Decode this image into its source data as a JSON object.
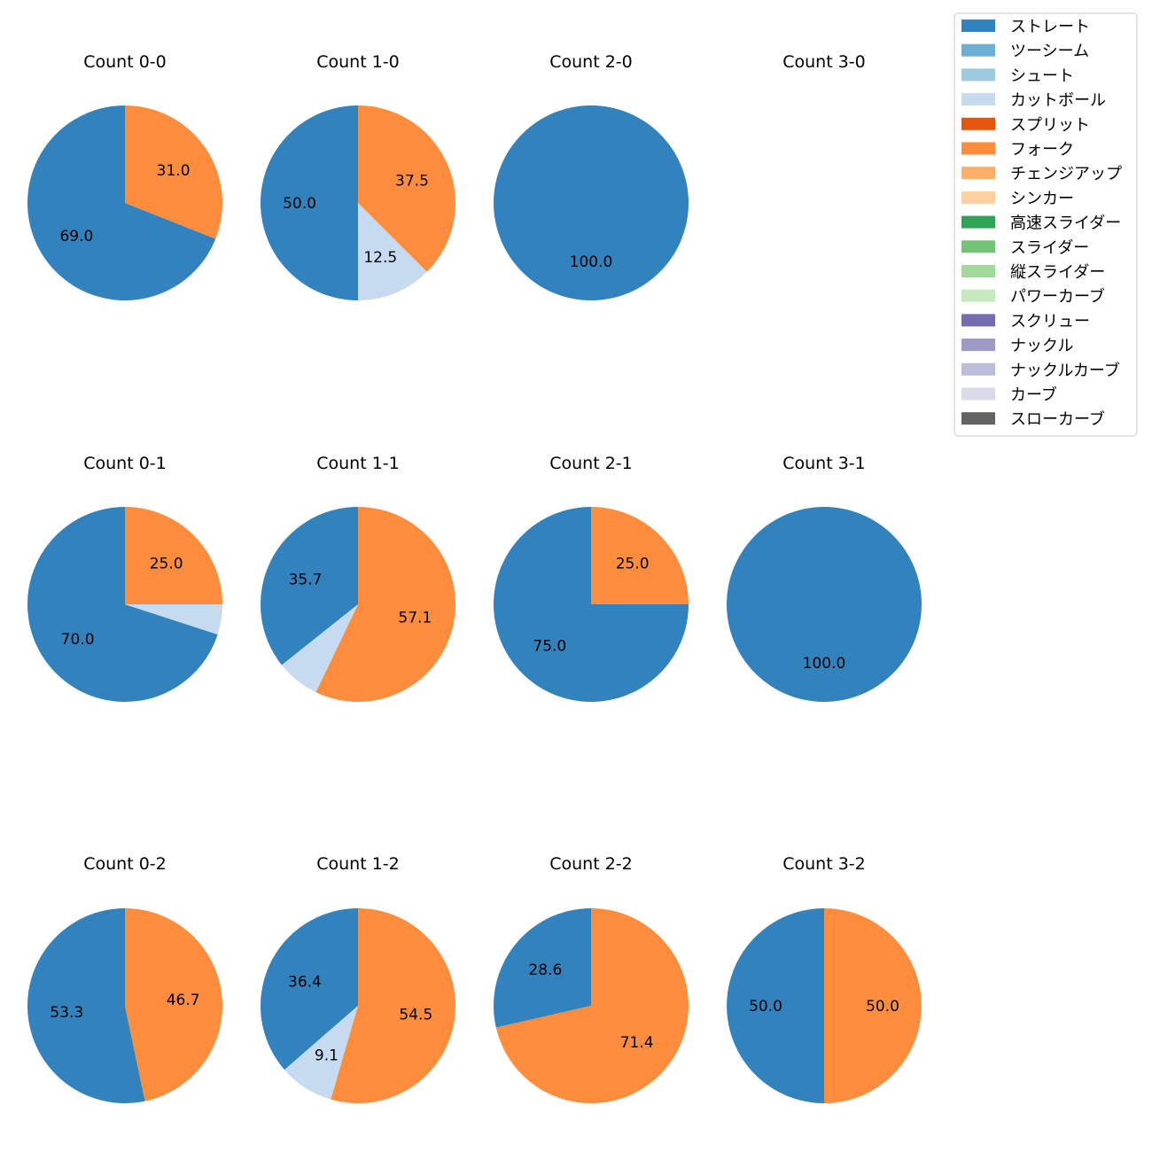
{
  "chart_data": {
    "type": "pie",
    "legend_position": "top-right",
    "legend": [
      {
        "label": "ストレート",
        "color": "#3282bd"
      },
      {
        "label": "ツーシーム",
        "color": "#6baed6"
      },
      {
        "label": "シュート",
        "color": "#9ecae1"
      },
      {
        "label": "カットボール",
        "color": "#c6dbef"
      },
      {
        "label": "スプリット",
        "color": "#e6550d"
      },
      {
        "label": "フォーク",
        "color": "#fd8d3c"
      },
      {
        "label": "チェンジアップ",
        "color": "#fdae6b"
      },
      {
        "label": "シンカー",
        "color": "#fdd0a2"
      },
      {
        "label": "高速スライダー",
        "color": "#31a354"
      },
      {
        "label": "スライダー",
        "color": "#74c476"
      },
      {
        "label": "縦スライダー",
        "color": "#a1d99b"
      },
      {
        "label": "パワーカーブ",
        "color": "#c7e9c0"
      },
      {
        "label": "スクリュー",
        "color": "#756bb1"
      },
      {
        "label": "ナックル",
        "color": "#9e9ac8"
      },
      {
        "label": "ナックルカーブ",
        "color": "#bcbddc"
      },
      {
        "label": "カーブ",
        "color": "#dadaeb"
      },
      {
        "label": "スローカーブ",
        "color": "#636363"
      }
    ],
    "charts": [
      {
        "title": "Count 0-0",
        "slices": [
          {
            "pitch": "ストレート",
            "value": 69.0
          },
          {
            "pitch": "フォーク",
            "value": 31.0
          }
        ]
      },
      {
        "title": "Count 1-0",
        "slices": [
          {
            "pitch": "ストレート",
            "value": 50.0
          },
          {
            "pitch": "カットボール",
            "value": 12.5
          },
          {
            "pitch": "フォーク",
            "value": 37.5
          }
        ]
      },
      {
        "title": "Count 2-0",
        "slices": [
          {
            "pitch": "ストレート",
            "value": 100.0
          }
        ]
      },
      {
        "title": "Count 3-0",
        "slices": []
      },
      {
        "title": "Count 0-1",
        "slices": [
          {
            "pitch": "ストレート",
            "value": 70.0
          },
          {
            "pitch": "カットボール",
            "value": 5.0,
            "label": ""
          },
          {
            "pitch": "フォーク",
            "value": 25.0
          }
        ]
      },
      {
        "title": "Count 1-1",
        "slices": [
          {
            "pitch": "ストレート",
            "value": 35.7
          },
          {
            "pitch": "カットボール",
            "value": 7.2,
            "label": ""
          },
          {
            "pitch": "フォーク",
            "value": 57.1
          }
        ]
      },
      {
        "title": "Count 2-1",
        "slices": [
          {
            "pitch": "ストレート",
            "value": 75.0
          },
          {
            "pitch": "フォーク",
            "value": 25.0
          }
        ]
      },
      {
        "title": "Count 3-1",
        "slices": [
          {
            "pitch": "ストレート",
            "value": 100.0
          }
        ]
      },
      {
        "title": "Count 0-2",
        "slices": [
          {
            "pitch": "ストレート",
            "value": 53.3
          },
          {
            "pitch": "フォーク",
            "value": 46.7
          }
        ]
      },
      {
        "title": "Count 1-2",
        "slices": [
          {
            "pitch": "ストレート",
            "value": 36.4
          },
          {
            "pitch": "カットボール",
            "value": 9.1
          },
          {
            "pitch": "フォーク",
            "value": 54.5
          }
        ]
      },
      {
        "title": "Count 2-2",
        "slices": [
          {
            "pitch": "ストレート",
            "value": 28.6
          },
          {
            "pitch": "フォーク",
            "value": 71.4
          }
        ]
      },
      {
        "title": "Count 3-2",
        "slices": [
          {
            "pitch": "ストレート",
            "value": 50.0
          },
          {
            "pitch": "フォーク",
            "value": 50.0
          }
        ]
      }
    ]
  }
}
